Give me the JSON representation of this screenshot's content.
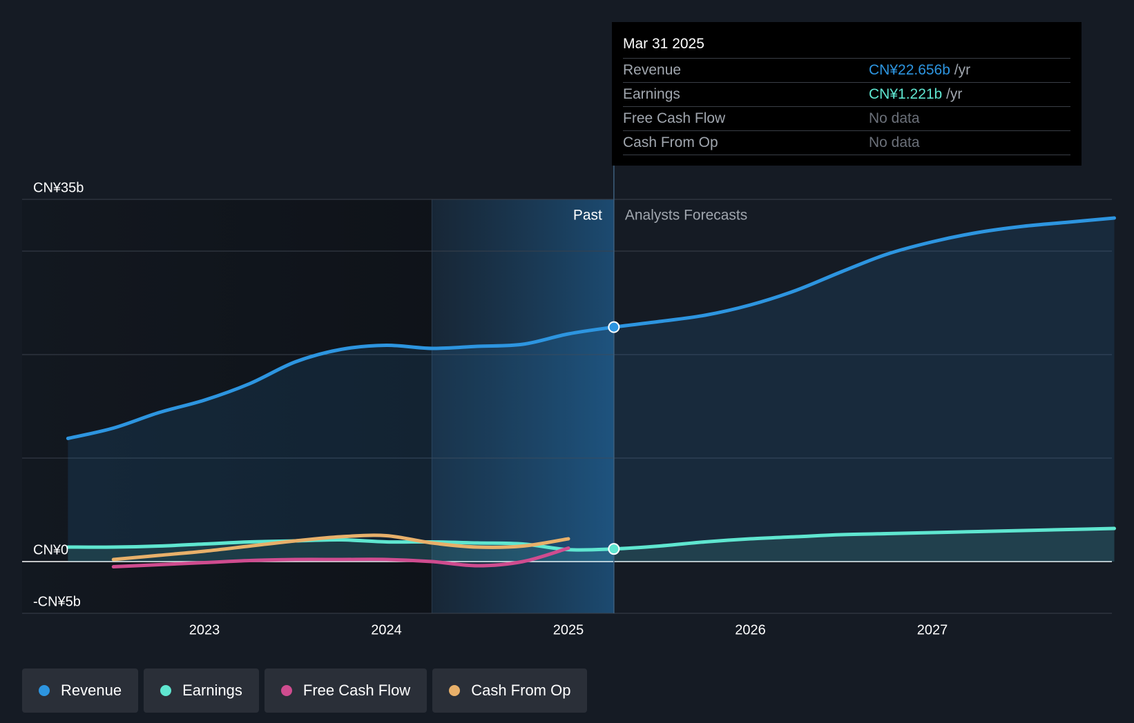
{
  "colors": {
    "revenue": "#2d95e0",
    "earnings": "#5fe6d0",
    "fcf": "#cf4c8f",
    "cfo": "#e8b06a",
    "grid": "#3a414c",
    "axis_text": "#ffffff",
    "past_text": "#ffffff",
    "forecast_text": "#a0a6ae"
  },
  "tooltip": {
    "date": "Mar 31 2025",
    "rows": [
      {
        "label": "Revenue",
        "value": "CN¥22.656b",
        "unit": "/yr",
        "color": "#2d95e0"
      },
      {
        "label": "Earnings",
        "value": "CN¥1.221b",
        "unit": "/yr",
        "color": "#5fe6d0"
      },
      {
        "label": "Free Cash Flow",
        "value": "No data",
        "unit": ""
      },
      {
        "label": "Cash From Op",
        "value": "No data",
        "unit": ""
      }
    ]
  },
  "legend": [
    {
      "label": "Revenue",
      "color": "#2d95e0"
    },
    {
      "label": "Earnings",
      "color": "#5fe6d0"
    },
    {
      "label": "Free Cash Flow",
      "color": "#cf4c8f"
    },
    {
      "label": "Cash From Op",
      "color": "#e8b06a"
    }
  ],
  "chart_data": {
    "type": "line",
    "title": "",
    "xlabel": "",
    "ylabel": "",
    "x_ticks": [
      2023,
      2024,
      2025,
      2026,
      2027
    ],
    "x_tick_labels": [
      "2023",
      "2024",
      "2025",
      "2026",
      "2027"
    ],
    "xlim": [
      2022.0,
      2028.0
    ],
    "ylim": [
      -5,
      35
    ],
    "y_tick_labels": [
      {
        "value": 35,
        "label": "CN¥35b"
      },
      {
        "value": 0,
        "label": "CN¥0"
      },
      {
        "value": -5,
        "label": "-CN¥5b"
      }
    ],
    "gridlines": [
      35,
      30,
      20,
      10,
      0,
      -5
    ],
    "past_start": 2024.25,
    "past_end": 2025.25,
    "past_label": "Past",
    "forecast_label": "Analysts Forecasts",
    "highlight_x": 2025.25,
    "series": [
      {
        "name": "Revenue",
        "key": "revenue",
        "area": true,
        "points": [
          [
            2022.25,
            11.9
          ],
          [
            2022.5,
            12.9
          ],
          [
            2022.75,
            14.4
          ],
          [
            2023.0,
            15.6
          ],
          [
            2023.25,
            17.2
          ],
          [
            2023.5,
            19.3
          ],
          [
            2023.75,
            20.5
          ],
          [
            2024.0,
            20.9
          ],
          [
            2024.25,
            20.6
          ],
          [
            2024.5,
            20.8
          ],
          [
            2024.75,
            21.0
          ],
          [
            2025.0,
            22.0
          ],
          [
            2025.25,
            22.656
          ],
          [
            2025.5,
            23.2
          ],
          [
            2025.75,
            23.8
          ],
          [
            2026.0,
            24.8
          ],
          [
            2026.25,
            26.2
          ],
          [
            2026.5,
            28.0
          ],
          [
            2026.75,
            29.7
          ],
          [
            2027.0,
            30.9
          ],
          [
            2027.25,
            31.8
          ],
          [
            2027.5,
            32.4
          ],
          [
            2027.75,
            32.8
          ],
          [
            2028.0,
            33.2
          ]
        ]
      },
      {
        "name": "Earnings",
        "key": "earnings",
        "area": true,
        "points": [
          [
            2022.25,
            1.4
          ],
          [
            2022.5,
            1.4
          ],
          [
            2022.75,
            1.5
          ],
          [
            2023.0,
            1.7
          ],
          [
            2023.25,
            1.9
          ],
          [
            2023.5,
            2.0
          ],
          [
            2023.75,
            2.1
          ],
          [
            2024.0,
            1.9
          ],
          [
            2024.25,
            1.9
          ],
          [
            2024.5,
            1.8
          ],
          [
            2024.75,
            1.7
          ],
          [
            2025.0,
            1.15
          ],
          [
            2025.25,
            1.221
          ],
          [
            2025.5,
            1.5
          ],
          [
            2025.75,
            1.9
          ],
          [
            2026.0,
            2.2
          ],
          [
            2026.25,
            2.4
          ],
          [
            2026.5,
            2.6
          ],
          [
            2026.75,
            2.7
          ],
          [
            2027.0,
            2.8
          ],
          [
            2027.25,
            2.9
          ],
          [
            2027.5,
            3.0
          ],
          [
            2027.75,
            3.1
          ],
          [
            2028.0,
            3.2
          ]
        ]
      },
      {
        "name": "Free Cash Flow",
        "key": "fcf",
        "area": false,
        "points": [
          [
            2022.5,
            -0.5
          ],
          [
            2022.75,
            -0.3
          ],
          [
            2023.0,
            -0.1
          ],
          [
            2023.25,
            0.1
          ],
          [
            2023.5,
            0.2
          ],
          [
            2023.75,
            0.2
          ],
          [
            2024.0,
            0.2
          ],
          [
            2024.25,
            0.0
          ],
          [
            2024.5,
            -0.4
          ],
          [
            2024.75,
            0.0
          ],
          [
            2025.0,
            1.3
          ]
        ]
      },
      {
        "name": "Cash From Op",
        "key": "cfo",
        "area": false,
        "points": [
          [
            2022.5,
            0.2
          ],
          [
            2022.75,
            0.6
          ],
          [
            2023.0,
            1.0
          ],
          [
            2023.25,
            1.5
          ],
          [
            2023.5,
            2.0
          ],
          [
            2023.75,
            2.4
          ],
          [
            2024.0,
            2.5
          ],
          [
            2024.25,
            1.8
          ],
          [
            2024.5,
            1.4
          ],
          [
            2024.75,
            1.5
          ],
          [
            2025.0,
            2.2
          ]
        ]
      }
    ]
  }
}
